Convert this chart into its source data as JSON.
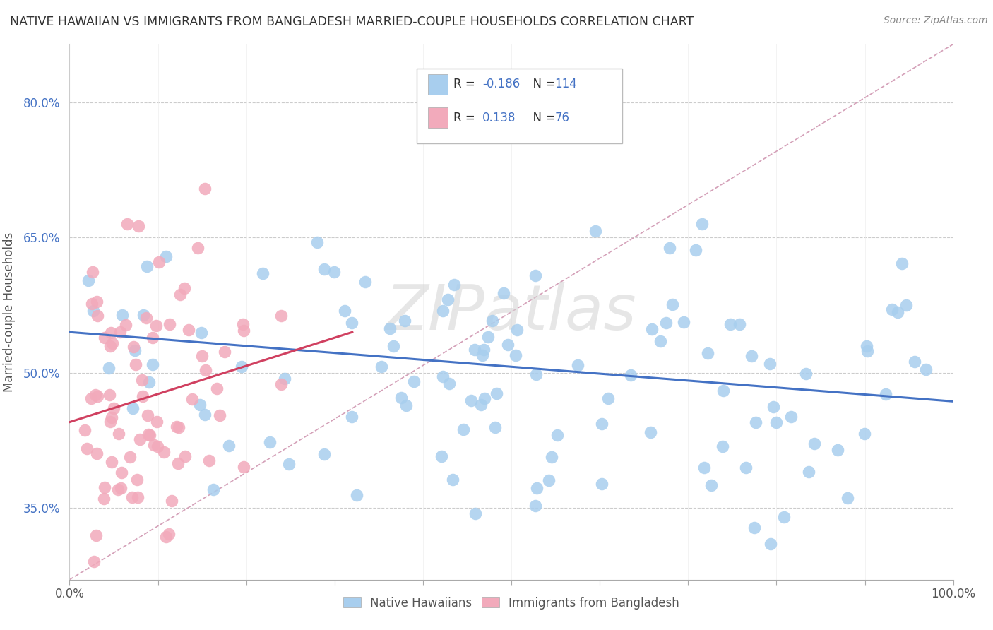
{
  "title": "NATIVE HAWAIIAN VS IMMIGRANTS FROM BANGLADESH MARRIED-COUPLE HOUSEHOLDS CORRELATION CHART",
  "source": "Source: ZipAtlas.com",
  "ylabel": "Married-couple Households",
  "xmin": 0.0,
  "xmax": 1.0,
  "ymin": 0.27,
  "ymax": 0.865,
  "legend_R1": "-0.186",
  "legend_N1": "114",
  "legend_R2": "0.138",
  "legend_N2": "76",
  "color_blue": "#A8CEEE",
  "color_pink": "#F2AABB",
  "color_blue_line": "#4472C4",
  "color_pink_line": "#D04060",
  "color_diag_line": "#CCBBCC",
  "ytick_vals": [
    0.35,
    0.5,
    0.65,
    0.8
  ],
  "ytick_labels": [
    "35.0%",
    "50.0%",
    "65.0%",
    "80.0%"
  ],
  "watermark_text": "ZIPatlas",
  "blue_trend_x": [
    0.0,
    1.0
  ],
  "blue_trend_y": [
    0.545,
    0.468
  ],
  "pink_trend_x": [
    0.0,
    0.32
  ],
  "pink_trend_y": [
    0.445,
    0.545
  ]
}
